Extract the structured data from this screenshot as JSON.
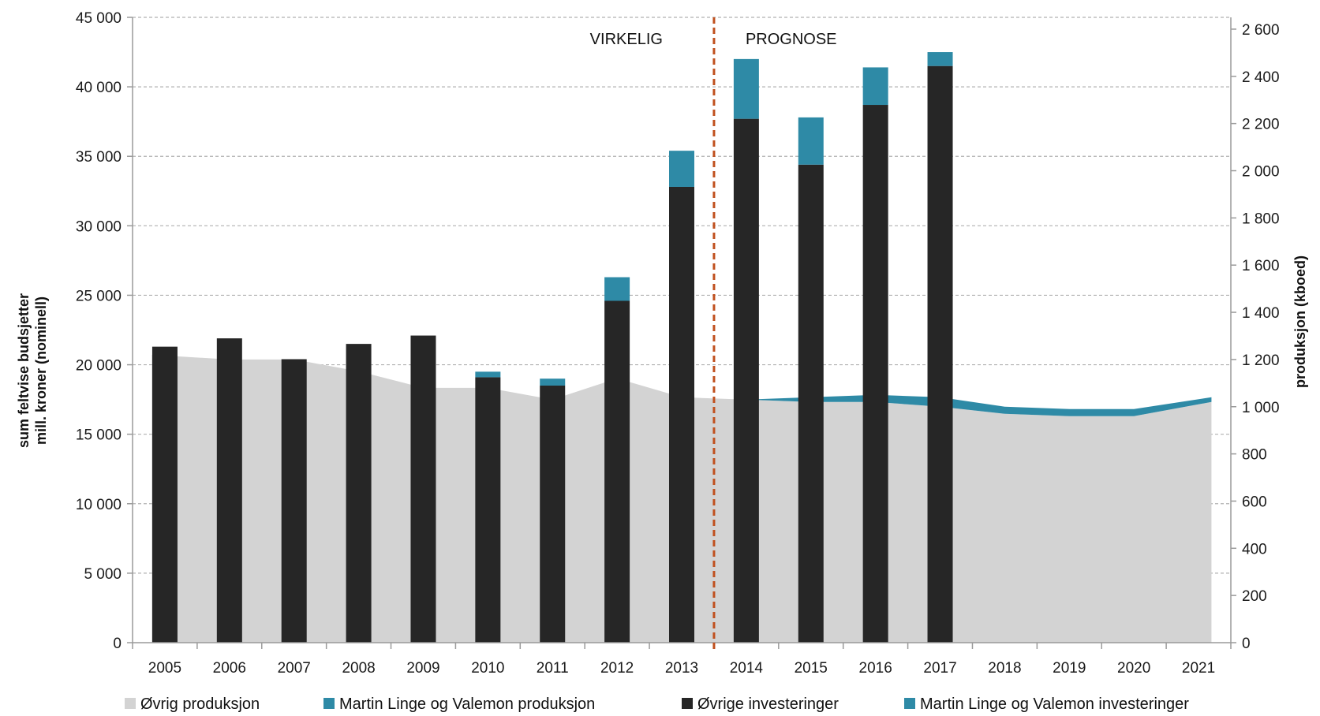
{
  "chart_data": {
    "type": "bar",
    "categories": [
      "2005",
      "2006",
      "2007",
      "2008",
      "2009",
      "2010",
      "2011",
      "2012",
      "2013",
      "2014",
      "2015",
      "2016",
      "2017",
      "2018",
      "2019",
      "2020",
      "2021"
    ],
    "ylabel_left": [
      "sum feltvise budsjetter",
      "mill. kroner (nominell)"
    ],
    "ylabel_right": "produksjon (kboed)",
    "ylim_left": [
      0,
      45000
    ],
    "ylim_right": [
      0,
      2650
    ],
    "left_ticks": [
      0,
      5000,
      10000,
      15000,
      20000,
      25000,
      30000,
      35000,
      40000,
      45000
    ],
    "left_tick_labels": [
      "0",
      "5 000",
      "10 000",
      "15 000",
      "20 000",
      "25 000",
      "30 000",
      "35 000",
      "40 000",
      "45 000"
    ],
    "right_ticks": [
      0,
      200,
      400,
      600,
      800,
      1000,
      1200,
      1400,
      1600,
      1800,
      2000,
      2200,
      2400,
      2600
    ],
    "right_tick_labels": [
      "0",
      "200",
      "400",
      "600",
      "800",
      "1 000",
      "1 200",
      "1 400",
      "1 600",
      "1 800",
      "2 000",
      "2 200",
      "2 400",
      "2 600"
    ],
    "grid": true,
    "annotations": {
      "actual": "VIRKELIG",
      "forecast": "PROGNOSE"
    },
    "divider_between": [
      "2013",
      "2014"
    ],
    "series": [
      {
        "name": "Øvrig produksjon",
        "type": "area",
        "axis": "right",
        "color": "#d3d3d3",
        "values": [
          1220,
          1200,
          1200,
          1150,
          1080,
          1080,
          1030,
          1120,
          1040,
          1030,
          1020,
          1020,
          1000,
          970,
          960,
          960,
          1020
        ]
      },
      {
        "name": "Martin Linge og Valemon produksjon",
        "type": "area",
        "axis": "right",
        "color": "#2e8aa6",
        "values": [
          0,
          0,
          0,
          0,
          0,
          0,
          0,
          0,
          0,
          0,
          20,
          30,
          40,
          30,
          30,
          30,
          20
        ]
      },
      {
        "name": "Øvrige investeringer",
        "type": "bar",
        "axis": "left",
        "color": "#262626",
        "values": [
          21300,
          21900,
          20400,
          21500,
          22100,
          19100,
          18500,
          24600,
          32800,
          37700,
          34400,
          38700,
          41500,
          null,
          null,
          null,
          null
        ]
      },
      {
        "name": "Martin Linge og Valemon investeringer",
        "type": "bar",
        "axis": "left",
        "color": "#2e8aa6",
        "values": [
          0,
          0,
          0,
          0,
          0,
          400,
          500,
          1700,
          2600,
          4300,
          3400,
          2700,
          1000,
          null,
          null,
          null,
          null
        ]
      }
    ],
    "legend_position": "bottom"
  }
}
